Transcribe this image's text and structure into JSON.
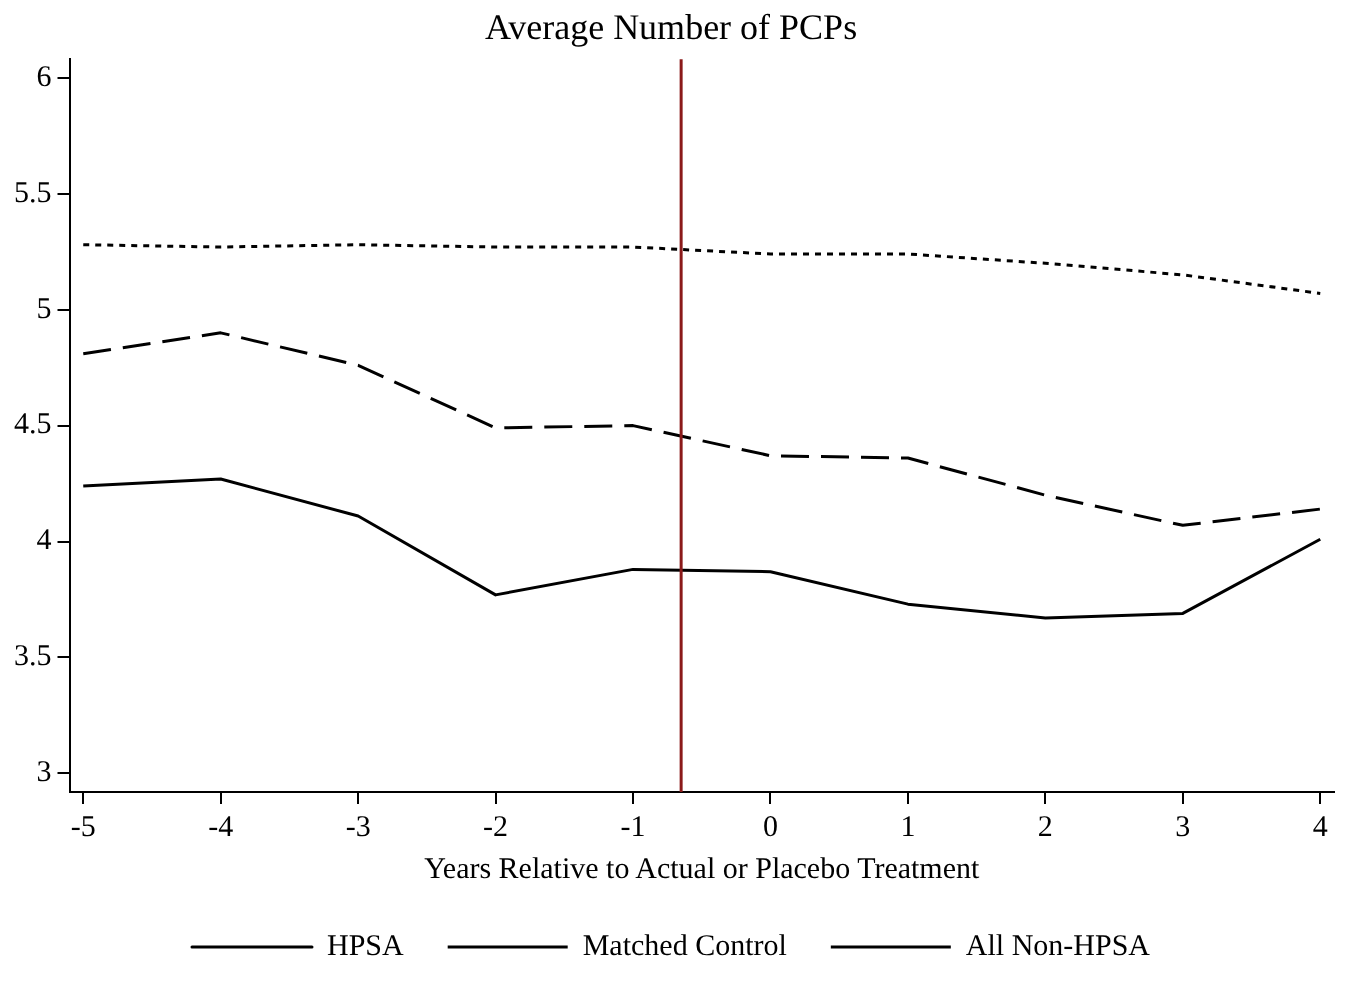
{
  "chart_data": {
    "type": "line",
    "title": "Average Number of PCPs",
    "xlabel": "Years Relative to Actual or Placebo Treatment",
    "x": [
      -5,
      -4,
      -3,
      -2,
      -1,
      0,
      1,
      2,
      3,
      4
    ],
    "series": [
      {
        "name": "HPSA",
        "color": "#000000",
        "line_style": "solid",
        "values": [
          4.24,
          4.27,
          4.11,
          3.77,
          3.88,
          3.87,
          3.73,
          3.67,
          3.69,
          4.01
        ]
      },
      {
        "name": "Matched Control",
        "color": "#000000",
        "line_style": "dashed",
        "values": [
          4.81,
          4.9,
          4.76,
          4.49,
          4.5,
          4.37,
          4.36,
          4.2,
          4.07,
          4.14
        ]
      },
      {
        "name": "All Non-HPSA",
        "color": "#000000",
        "line_style": "dotted",
        "values": [
          5.28,
          5.27,
          5.28,
          5.27,
          5.27,
          5.24,
          5.24,
          5.2,
          5.15,
          5.07
        ]
      }
    ],
    "xlim": [
      -5.1,
      4.1
    ],
    "xticks": [
      -5,
      -4,
      -3,
      -2,
      -1,
      0,
      1,
      2,
      3,
      4
    ],
    "ylim": [
      2.92,
      6.08
    ],
    "yticks": [
      3,
      3.5,
      4,
      4.5,
      5,
      5.5,
      6
    ],
    "ref_lines": [
      {
        "axis": "x",
        "value": -0.65,
        "color": "#8b1a1a"
      }
    ],
    "grid": false,
    "legend": "bottom",
    "marker": "none"
  }
}
